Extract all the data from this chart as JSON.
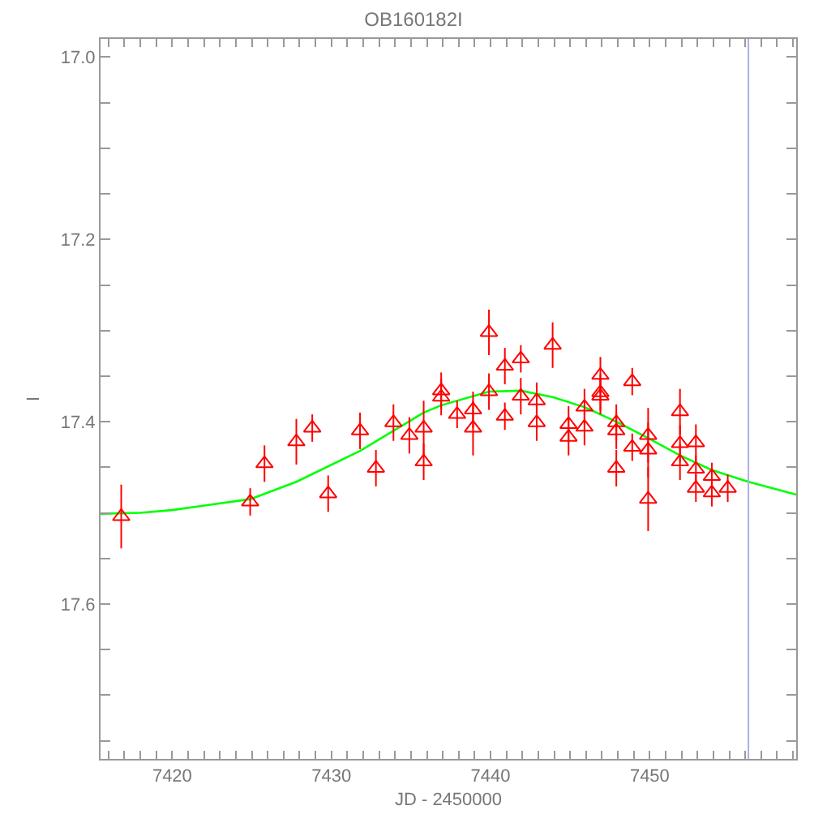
{
  "chart_data": {
    "type": "scatter",
    "title": "OB160182I",
    "xlabel": "JD - 2450000",
    "ylabel": "I",
    "xlim": [
      7415.5,
      7459.2
    ],
    "ylim": [
      17.77,
      16.98
    ],
    "xticks": [
      {
        "value": 7416,
        "label": null
      },
      {
        "value": 7417,
        "label": null
      },
      {
        "value": 7418,
        "label": null
      },
      {
        "value": 7419,
        "label": null
      },
      7420,
      {
        "value": 7421,
        "label": null
      },
      {
        "value": 7422,
        "label": null
      },
      {
        "value": 7423,
        "label": null
      },
      {
        "value": 7424,
        "label": null
      },
      {
        "value": 7425,
        "label": null
      },
      {
        "value": 7426,
        "label": null
      },
      {
        "value": 7427,
        "label": null
      },
      {
        "value": 7428,
        "label": null
      },
      {
        "value": 7429,
        "label": null
      },
      7430,
      {
        "value": 7431,
        "label": null
      },
      {
        "value": 7432,
        "label": null
      },
      {
        "value": 7433,
        "label": null
      },
      {
        "value": 7434,
        "label": null
      },
      {
        "value": 7435,
        "label": null
      },
      {
        "value": 7436,
        "label": null
      },
      {
        "value": 7437,
        "label": null
      },
      {
        "value": 7438,
        "label": null
      },
      {
        "value": 7439,
        "label": null
      },
      7440,
      {
        "value": 7441,
        "label": null
      },
      {
        "value": 7442,
        "label": null
      },
      {
        "value": 7443,
        "label": null
      },
      {
        "value": 7444,
        "label": null
      },
      {
        "value": 7445,
        "label": null
      },
      {
        "value": 7446,
        "label": null
      },
      {
        "value": 7447,
        "label": null
      },
      {
        "value": 7448,
        "label": null
      },
      {
        "value": 7449,
        "label": null
      },
      7450,
      {
        "value": 7451,
        "label": null
      },
      {
        "value": 7452,
        "label": null
      },
      {
        "value": 7453,
        "label": null
      },
      {
        "value": 7454,
        "label": null
      },
      {
        "value": 7455,
        "label": null
      },
      {
        "value": 7456,
        "label": null
      },
      {
        "value": 7457,
        "label": null
      },
      {
        "value": 7458,
        "label": null
      },
      {
        "value": 7459,
        "label": null
      }
    ],
    "yticks": [
      {
        "value": 17.0,
        "label": "17.0"
      },
      {
        "value": 17.05,
        "label": null
      },
      {
        "value": 17.1,
        "label": null
      },
      {
        "value": 17.15,
        "label": null
      },
      {
        "value": 17.2,
        "label": "17.2"
      },
      {
        "value": 17.25,
        "label": null
      },
      {
        "value": 17.3,
        "label": null
      },
      {
        "value": 17.35,
        "label": null
      },
      {
        "value": 17.4,
        "label": "17.4"
      },
      {
        "value": 17.45,
        "label": null
      },
      {
        "value": 17.5,
        "label": null
      },
      {
        "value": 17.55,
        "label": null
      },
      {
        "value": 17.6,
        "label": "17.6"
      },
      {
        "value": 17.65,
        "label": null
      },
      {
        "value": 17.7,
        "label": null
      },
      {
        "value": 17.75,
        "label": null
      }
    ],
    "grid": false,
    "ref_lines": [
      {
        "axis": "x",
        "value": 7456.2,
        "color": "#aab0e8"
      }
    ],
    "series": [
      {
        "type": "line",
        "color": "#00ff00",
        "marker": "none",
        "line_style": "solid",
        "x": [
          7415.5,
          7418,
          7420,
          7424.9,
          7427.8,
          7431.8,
          7435.8,
          7436.9,
          7439.9,
          7441.9,
          7443.9,
          7445.9,
          7447.9,
          7449.9,
          7451.9,
          7453.9,
          7456.2,
          7459.2
        ],
        "values": [
          17.501,
          17.5,
          17.497,
          17.485,
          17.466,
          17.432,
          17.39,
          17.382,
          17.367,
          17.366,
          17.373,
          17.384,
          17.4,
          17.418,
          17.437,
          17.453,
          17.466,
          17.48
        ]
      },
      {
        "color": "#ff0000",
        "marker": "triangle",
        "x": [
          7416.8,
          7424.9,
          7425.8,
          7427.8,
          7428.8,
          7429.8,
          7431.8,
          7432.8,
          7433.9,
          7434.9,
          7435.8,
          7435.8,
          7436.9,
          7436.9,
          7437.9,
          7438.9,
          7438.9,
          7439.9,
          7439.9,
          7440.9,
          7440.9,
          7441.9,
          7441.9,
          7442.9,
          7442.9,
          7443.9,
          7444.9,
          7444.9,
          7445.9,
          7445.9,
          7446.9,
          7446.9,
          7446.9,
          7447.9,
          7447.9,
          7447.9,
          7448.9,
          7448.9,
          7449.9,
          7449.9,
          7449.9,
          7451.9,
          7451.9,
          7451.9,
          7452.9,
          7452.9,
          7452.9,
          7453.9,
          7453.9,
          7454.9
        ],
        "values": [
          17.504,
          17.488,
          17.446,
          17.422,
          17.407,
          17.479,
          17.41,
          17.451,
          17.401,
          17.415,
          17.407,
          17.444,
          17.366,
          17.373,
          17.392,
          17.387,
          17.407,
          17.302,
          17.367,
          17.339,
          17.394,
          17.331,
          17.372,
          17.377,
          17.401,
          17.316,
          17.403,
          17.417,
          17.384,
          17.406,
          17.349,
          17.368,
          17.372,
          17.401,
          17.41,
          17.451,
          17.356,
          17.428,
          17.415,
          17.431,
          17.485,
          17.389,
          17.424,
          17.444,
          17.423,
          17.452,
          17.473,
          17.46,
          17.478,
          17.473
        ],
        "errors": [
          0.035,
          0.015,
          0.02,
          0.025,
          0.015,
          0.02,
          0.02,
          0.02,
          0.02,
          0.02,
          0.03,
          0.02,
          0.02,
          0.02,
          0.015,
          0.02,
          0.03,
          0.025,
          0.02,
          0.02,
          0.015,
          0.015,
          0.02,
          0.02,
          0.02,
          0.025,
          0.02,
          0.02,
          0.02,
          0.02,
          0.02,
          0.02,
          0.02,
          0.02,
          0.02,
          0.02,
          0.015,
          0.015,
          0.03,
          0.03,
          0.035,
          0.025,
          0.02,
          0.02,
          0.02,
          0.015,
          0.015,
          0.015,
          0.015,
          0.015
        ]
      }
    ]
  }
}
